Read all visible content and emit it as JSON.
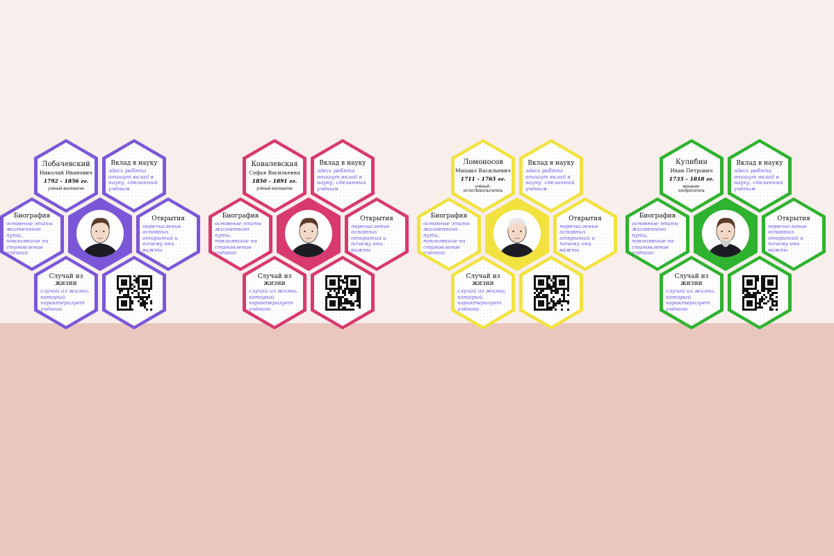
{
  "labels": {
    "contribution": "Вклад в науку",
    "biography": "Биография",
    "discoveries": "Открытия",
    "life_case": "Случай из жизни"
  },
  "placeholders": {
    "contribution": "здесь ребята опишут вклад в науку, сделанный учёным",
    "biography": "основные этапы жизненного пути, повлиявшие на становление учёного",
    "discoveries": "перечисление основных открытий и почему они важны",
    "life_case": "случай из жизни, который характеризует учёного"
  },
  "scientists": [
    {
      "name": "Лобачевский",
      "patronymic": "Николай Иванович",
      "years": "1792 – 1856 гг.",
      "profession": "учёный-математик",
      "color": "#7b57d8"
    },
    {
      "name": "Ковалевская",
      "patronymic": "Софья Васильевна",
      "years": "1850 – 1891 гг.",
      "profession": "учёный-математик",
      "color": "#d8396f"
    },
    {
      "name": "Ломоносов",
      "patronymic": "Михаил Васильевич",
      "years": "1711 – 1765 гг.",
      "profession": "учёный-естествоиспытатель",
      "color": "#f1e23f"
    },
    {
      "name": "Кулибин",
      "patronymic": "Иван Петрович",
      "years": "1735 – 1818 гг.",
      "profession": "механик-изобретатель",
      "color": "#2fb22f"
    }
  ]
}
